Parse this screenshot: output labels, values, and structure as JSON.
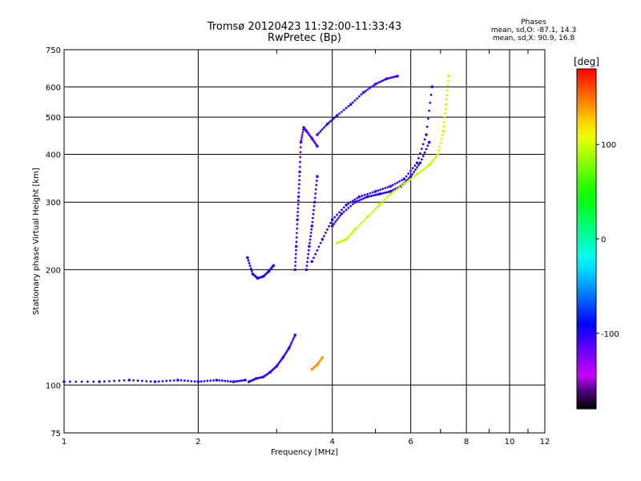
{
  "header": {
    "title": "Tromsø 20120423 11:32:00-11:33:43",
    "subtitle": "RwPretec (Bp)"
  },
  "phases": {
    "label": "Phases",
    "line_o": "mean, sd,O: -87.1, 14.3",
    "line_x": "mean, sd,X:  90.9, 16.8"
  },
  "chart_data": {
    "type": "scatter",
    "title": "Tromsø 20120423 11:32:00-11:33:43",
    "subtitle": "RwPretec (Bp)",
    "xlabel": "Frequency [MHz]",
    "ylabel": "Stationary phase Virtual Height [km]",
    "x_scale": "log",
    "y_scale": "log",
    "xlim": [
      1,
      12
    ],
    "ylim": [
      75,
      750
    ],
    "x_ticks": [
      1,
      2,
      4,
      6,
      8,
      10,
      12
    ],
    "y_ticks": [
      75,
      100,
      200,
      300,
      400,
      500,
      600,
      750
    ],
    "x_minor": [
      3,
      5,
      7,
      9,
      11
    ],
    "grid": true,
    "colorbar": {
      "label": "[deg]",
      "range": [
        -180,
        180
      ],
      "ticks": [
        100,
        0,
        -100
      ],
      "colormap": "rainbow (black-purple-blue-cyan-green-yellow-red)"
    },
    "series": [
      {
        "name": "O",
        "color": "#1e64ff",
        "traces": [
          {
            "x": [
              1.0,
              1.2,
              1.4,
              1.6,
              1.8,
              2.0,
              2.2,
              2.4,
              2.55
            ],
            "y": [
              102,
              102,
              103,
              102,
              103,
              102,
              103,
              102,
              103
            ],
            "phase": -100
          },
          {
            "x": [
              2.6,
              2.7,
              2.8,
              2.9,
              3.0,
              3.1,
              3.2,
              3.3
            ],
            "y": [
              102,
              104,
              105,
              108,
              112,
              118,
              125,
              135
            ],
            "phase": -105
          },
          {
            "x": [
              2.58,
              2.65,
              2.72,
              2.8,
              2.88,
              2.95
            ],
            "y": [
              215,
              195,
              190,
              192,
              198,
              205
            ],
            "phase": -95
          },
          {
            "x": [
              3.3,
              3.32,
              3.34,
              3.36,
              3.38,
              3.4,
              3.45,
              3.5,
              3.6,
              3.7
            ],
            "y": [
              200,
              230,
              270,
              310,
              360,
              430,
              470,
              460,
              440,
              420
            ],
            "phase": -110
          },
          {
            "x": [
              3.5,
              3.55,
              3.6,
              3.65,
              3.7
            ],
            "y": [
              200,
              230,
              260,
              300,
              350
            ],
            "phase": -105
          },
          {
            "x": [
              3.7,
              3.9,
              4.1,
              4.4,
              4.7,
              5.0,
              5.3,
              5.6
            ],
            "y": [
              450,
              480,
              505,
              540,
              580,
              610,
              630,
              640
            ],
            "phase": -105
          },
          {
            "x": [
              3.6,
              3.8,
              4.0,
              4.3,
              4.6,
              5.0,
              5.4,
              5.8,
              6.2,
              6.5,
              6.7
            ],
            "y": [
              210,
              240,
              270,
              295,
              310,
              320,
              330,
              345,
              380,
              450,
              600
            ],
            "phase": -105
          },
          {
            "x": [
              4.0,
              4.2,
              4.5,
              4.8,
              5.1,
              5.4,
              5.7,
              6.0,
              6.3,
              6.6
            ],
            "y": [
              260,
              280,
              300,
              310,
              315,
              320,
              330,
              350,
              380,
              430
            ],
            "phase": -100
          }
        ]
      },
      {
        "name": "X",
        "color": "#ffdd00",
        "traces": [
          {
            "x": [
              3.6,
              3.7,
              3.8
            ],
            "y": [
              110,
              113,
              118
            ],
            "phase": 140
          },
          {
            "x": [
              4.1,
              4.3,
              4.5,
              4.8,
              5.1,
              5.4,
              5.8,
              6.2,
              6.6,
              6.9,
              7.1,
              7.2,
              7.3
            ],
            "y": [
              235,
              240,
              255,
              275,
              295,
              315,
              335,
              355,
              375,
              400,
              460,
              540,
              640
            ],
            "phase": 95
          }
        ]
      }
    ]
  }
}
